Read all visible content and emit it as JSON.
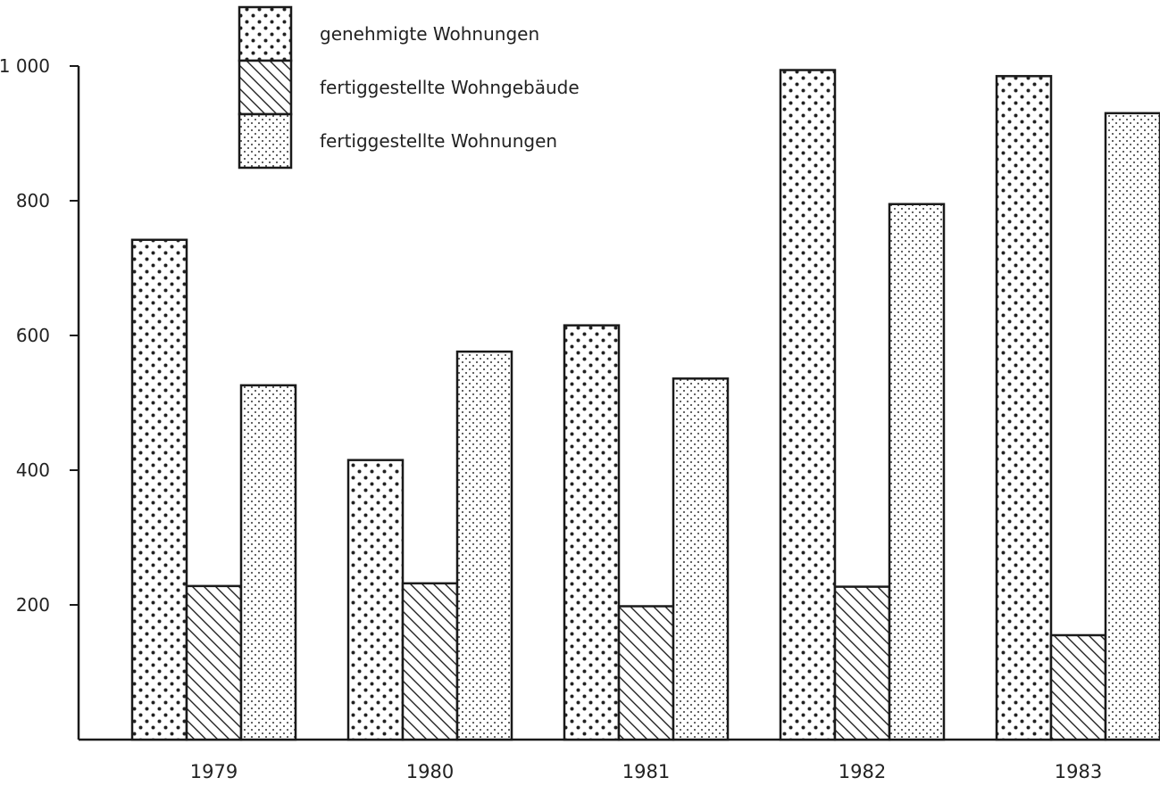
{
  "chart_data": {
    "type": "bar",
    "title": "",
    "xlabel": "",
    "ylabel": "",
    "categories": [
      "1979",
      "1980",
      "1981",
      "1982",
      "1983"
    ],
    "series": [
      {
        "name": "genehmigte Wohnungen",
        "values": [
          742,
          415,
          615,
          994,
          985
        ]
      },
      {
        "name": "fertiggestellte Wohngebäude",
        "values": [
          228,
          232,
          198,
          227,
          155
        ]
      },
      {
        "name": "fertiggestellte Wohnungen",
        "values": [
          526,
          576,
          536,
          795,
          930
        ]
      }
    ],
    "yticks": [
      "200",
      "400",
      "600",
      "800",
      "1 000"
    ],
    "ytick_values": [
      200,
      400,
      600,
      800,
      1000
    ],
    "ylim": [
      0,
      1000
    ],
    "grid": false,
    "legend_position": "top-left",
    "colors": {
      "stroke": "#1a1a1a",
      "background": "#ffffff"
    },
    "patterns": [
      "coarse-dots",
      "diagonal-hatch",
      "fine-dots"
    ]
  }
}
